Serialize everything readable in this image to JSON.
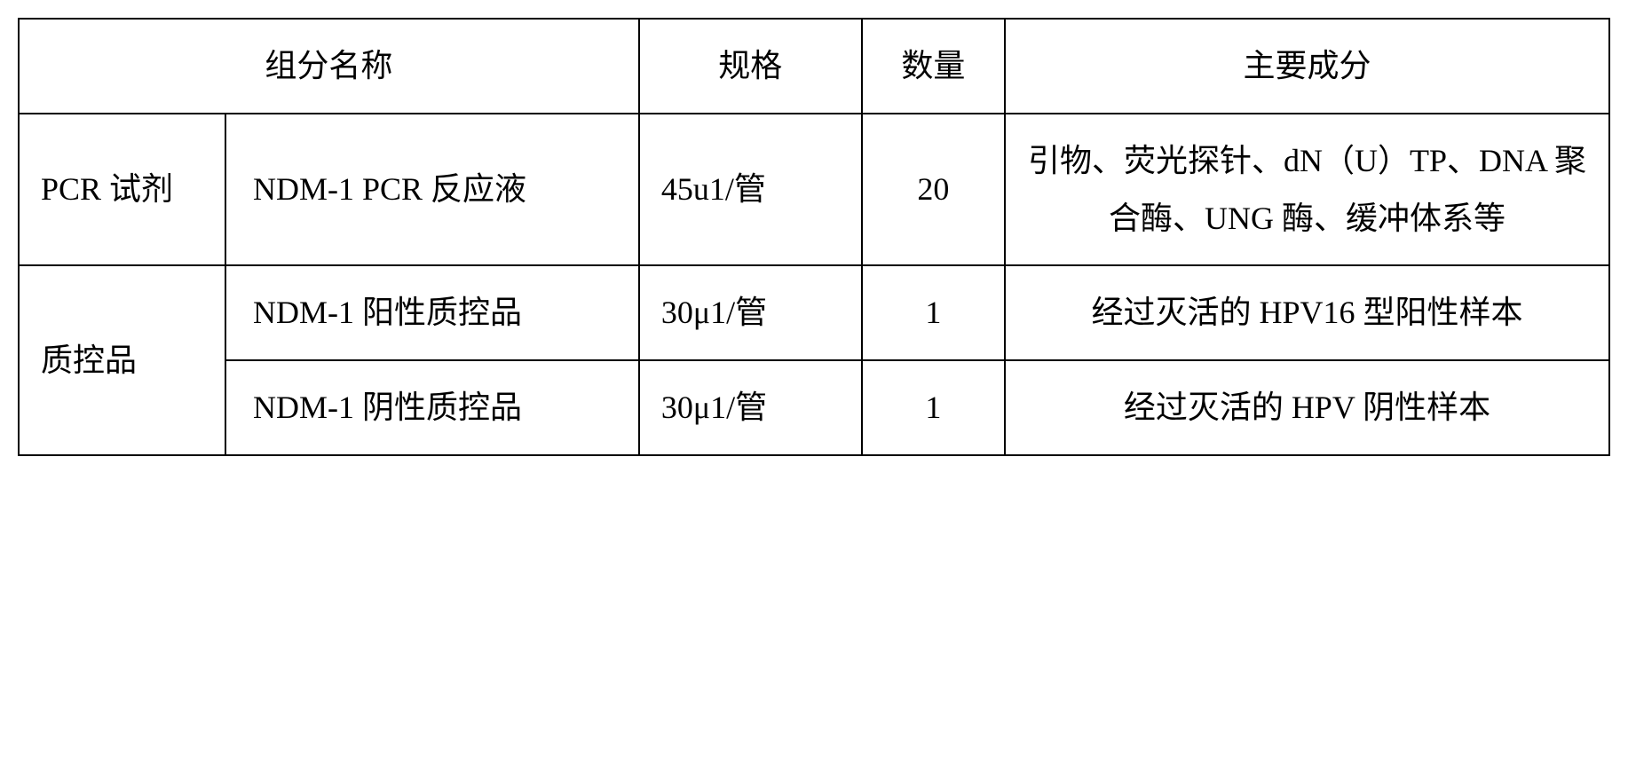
{
  "table": {
    "headers": {
      "component_name": "组分名称",
      "spec": "规格",
      "quantity": "数量",
      "main_ingredients": "主要成分"
    },
    "rows": [
      {
        "category": "PCR 试剂",
        "name": "NDM-1 PCR 反应液",
        "spec": "45u1/管",
        "quantity": "20",
        "ingredients": "引物、荧光探针、dN（U）TP、DNA 聚合酶、UNG 酶、缓冲体系等"
      },
      {
        "category": "质控品",
        "name": "NDM-1 阳性质控品",
        "spec": "30μ1/管",
        "quantity": "1",
        "ingredients": "经过灭活的 HPV16 型阳性样本"
      },
      {
        "name": "NDM-1 阴性质控品",
        "spec": "30μ1/管",
        "quantity": "1",
        "ingredients": "经过灭活的 HPV 阴性样本"
      }
    ],
    "styling": {
      "border_color": "#000000",
      "border_width": 2,
      "background_color": "#ffffff",
      "text_color": "#000000",
      "font_family": "SimSun",
      "font_size": 36,
      "line_height": 1.8,
      "column_widths_pct": [
        13,
        26,
        14,
        9,
        38
      ]
    }
  }
}
